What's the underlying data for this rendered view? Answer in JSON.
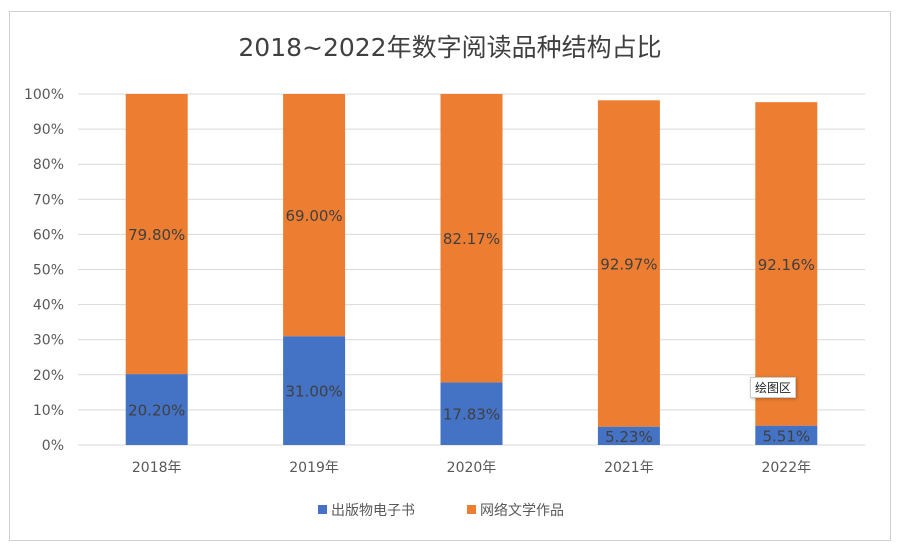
{
  "chart_data": {
    "type": "bar",
    "stacked": true,
    "title": "2018~2022年数字阅读品种结构占比",
    "categories": [
      "2018年",
      "2019年",
      "2020年",
      "2021年",
      "2022年"
    ],
    "series": [
      {
        "name": "出版物电子书",
        "values": [
          20.2,
          31.0,
          17.83,
          5.23,
          5.51
        ],
        "labels": [
          "20.20%",
          "31.00%",
          "17.83%",
          "5.23%",
          "5.51%"
        ],
        "color": "#4472C4"
      },
      {
        "name": "网络文学作品",
        "values": [
          79.8,
          69.0,
          82.17,
          92.97,
          92.16
        ],
        "labels": [
          "79.80%",
          "69.00%",
          "82.17%",
          "92.97%",
          "92.16%"
        ],
        "color": "#ED7D31"
      }
    ],
    "ylim": [
      0,
      100
    ],
    "yticks": [
      "0%",
      "10%",
      "20%",
      "30%",
      "40%",
      "50%",
      "60%",
      "70%",
      "80%",
      "90%",
      "100%"
    ],
    "grid": true,
    "legend": "bottom"
  },
  "tooltip": "绘图区"
}
